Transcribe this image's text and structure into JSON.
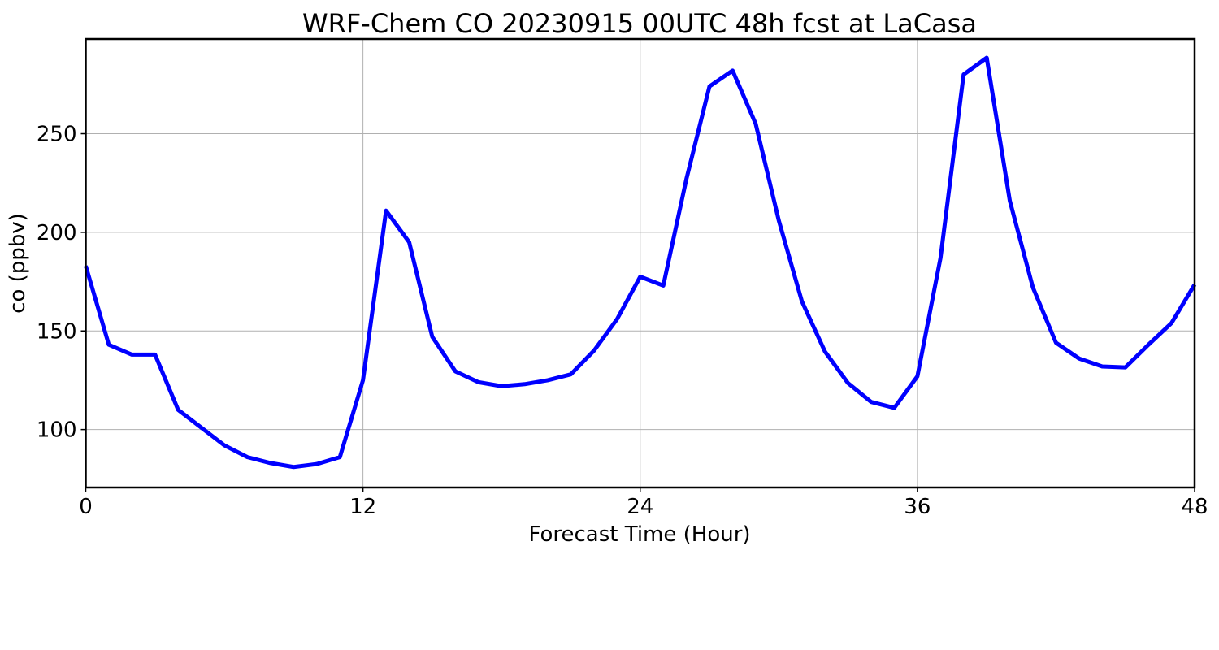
{
  "chart_data": {
    "type": "line",
    "title": "WRF-Chem CO  20230915 00UTC 48h fcst at LaCasa",
    "xlabel": "Forecast Time (Hour)",
    "ylabel": "co  (ppbv)",
    "xlim": [
      0,
      48
    ],
    "ylim": [
      70.6,
      298
    ],
    "xticks": [
      0,
      12,
      24,
      36,
      48
    ],
    "yticks": [
      100,
      150,
      200,
      250
    ],
    "grid": true,
    "line_color": "#0000ff",
    "series": [
      {
        "x": [
          0,
          1,
          2,
          3,
          4,
          5,
          6,
          7,
          8,
          9,
          10,
          11,
          12,
          13,
          14,
          15,
          16,
          17,
          18,
          19,
          20,
          21,
          22,
          23,
          24,
          25,
          26,
          27,
          28,
          29,
          30,
          31,
          32,
          33,
          34,
          35,
          36,
          37,
          38,
          39,
          40,
          41,
          42,
          43,
          44,
          45,
          46,
          47,
          48
        ],
        "values": [
          183,
          143,
          138,
          138,
          110,
          101,
          92,
          86,
          83,
          81,
          82.5,
          86,
          125,
          211,
          195,
          147,
          129.5,
          124,
          122,
          123,
          125,
          128,
          140,
          156,
          177.5,
          173,
          227,
          274,
          282,
          255,
          206,
          165,
          139.5,
          123.5,
          114,
          111,
          127,
          187,
          280,
          288.5,
          216,
          172,
          144,
          136,
          132,
          131.5,
          143,
          154,
          173.5
        ]
      }
    ]
  }
}
